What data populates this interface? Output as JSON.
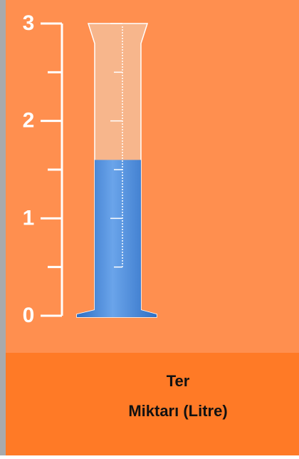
{
  "chart_data": {
    "type": "cylinder",
    "title_lines": [
      "Ter",
      "Miktarı (Litre)"
    ],
    "value": 1.6,
    "color": "#3c7fd6",
    "ylim": [
      0,
      3
    ],
    "yticks": [
      0,
      1,
      2,
      3
    ],
    "minor_yticks": [
      0.5,
      1.5,
      2.5
    ]
  }
}
